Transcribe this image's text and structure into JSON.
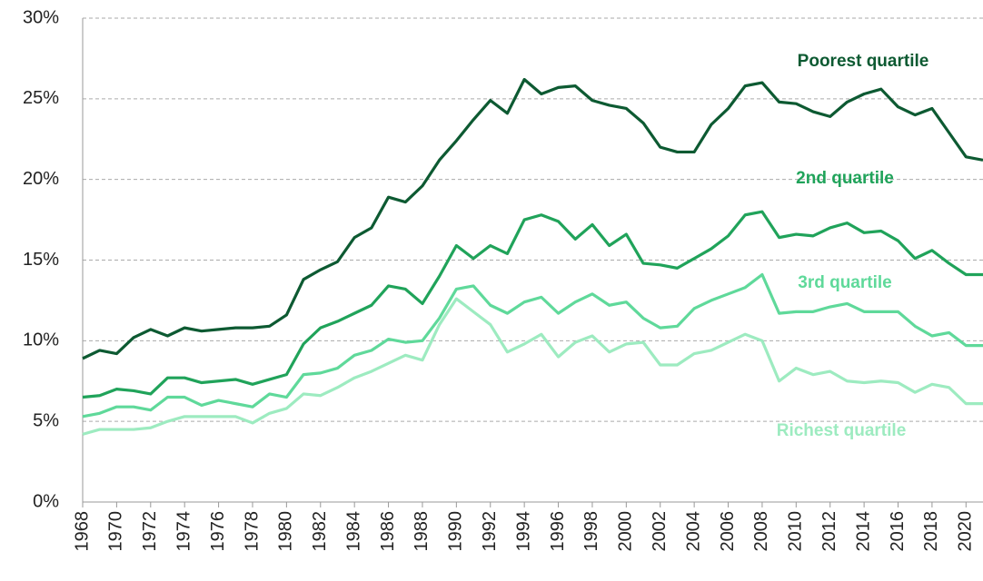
{
  "chart_data": {
    "type": "line",
    "x": [
      1968,
      1969,
      1970,
      1971,
      1972,
      1973,
      1974,
      1975,
      1976,
      1977,
      1978,
      1979,
      1980,
      1981,
      1982,
      1983,
      1984,
      1985,
      1986,
      1987,
      1988,
      1989,
      1990,
      1991,
      1992,
      1993,
      1994,
      1995,
      1996,
      1997,
      1998,
      1999,
      2000,
      2001,
      2002,
      2003,
      2004,
      2005,
      2006,
      2007,
      2008,
      2009,
      2010,
      2011,
      2012,
      2013,
      2014,
      2015,
      2016,
      2017,
      2018,
      2019,
      2020,
      2021
    ],
    "series": [
      {
        "name": "Poorest quartile",
        "color": "#0d5a32",
        "values": [
          8.9,
          9.4,
          9.2,
          10.2,
          10.7,
          10.3,
          10.8,
          10.6,
          10.7,
          10.8,
          10.8,
          10.9,
          11.6,
          13.8,
          14.4,
          14.9,
          16.4,
          17.0,
          18.9,
          18.6,
          19.6,
          21.2,
          22.4,
          23.7,
          24.9,
          24.1,
          26.2,
          25.3,
          25.7,
          25.8,
          24.9,
          24.6,
          24.4,
          23.5,
          22.0,
          21.7,
          21.7,
          23.4,
          24.4,
          25.8,
          26.0,
          24.8,
          24.7,
          24.2,
          23.9,
          24.8,
          25.3,
          25.6,
          24.5,
          24.0,
          24.4,
          22.9,
          21.4,
          21.2
        ]
      },
      {
        "name": "2nd quartile",
        "color": "#20a35a",
        "values": [
          6.5,
          6.6,
          7.0,
          6.9,
          6.7,
          7.7,
          7.7,
          7.4,
          7.5,
          7.6,
          7.3,
          7.6,
          7.9,
          9.8,
          10.8,
          11.2,
          11.7,
          12.2,
          13.4,
          13.2,
          12.3,
          14.0,
          15.9,
          15.1,
          15.9,
          15.4,
          17.5,
          17.8,
          17.4,
          16.3,
          17.2,
          15.9,
          16.6,
          14.8,
          14.7,
          14.5,
          15.1,
          15.7,
          16.5,
          17.8,
          18.0,
          16.4,
          16.6,
          16.5,
          17.0,
          17.3,
          16.7,
          16.8,
          16.2,
          15.1,
          15.6,
          14.8,
          14.1,
          14.1
        ]
      },
      {
        "name": "3rd quartile",
        "color": "#5fd99a",
        "values": [
          5.3,
          5.5,
          5.9,
          5.9,
          5.7,
          6.5,
          6.5,
          6.0,
          6.3,
          6.1,
          5.9,
          6.7,
          6.5,
          7.9,
          8.0,
          8.3,
          9.1,
          9.4,
          10.1,
          9.9,
          10.0,
          11.4,
          13.2,
          13.4,
          12.2,
          11.7,
          12.4,
          12.7,
          11.7,
          12.4,
          12.9,
          12.2,
          12.4,
          11.4,
          10.8,
          10.9,
          12.0,
          12.5,
          12.9,
          13.3,
          14.1,
          11.7,
          11.8,
          11.8,
          12.1,
          12.3,
          11.8,
          11.8,
          11.8,
          10.9,
          10.3,
          10.5,
          9.7,
          9.7
        ]
      },
      {
        "name": "Richest quartile",
        "color": "#9debc0",
        "values": [
          4.2,
          4.5,
          4.5,
          4.5,
          4.6,
          5.0,
          5.3,
          5.3,
          5.3,
          5.3,
          4.9,
          5.5,
          5.8,
          6.7,
          6.6,
          7.1,
          7.7,
          8.1,
          8.6,
          9.1,
          8.8,
          11.0,
          12.6,
          11.8,
          11.0,
          9.3,
          9.8,
          10.4,
          9.0,
          9.9,
          10.3,
          9.3,
          9.8,
          9.9,
          8.5,
          8.5,
          9.2,
          9.4,
          9.9,
          10.4,
          10.0,
          7.5,
          8.3,
          7.9,
          8.1,
          7.5,
          7.4,
          7.5,
          7.4,
          6.8,
          7.3,
          7.1,
          6.1,
          6.1
        ]
      }
    ],
    "xlim": [
      1968,
      2021
    ],
    "xticks": [
      1968,
      1970,
      1972,
      1974,
      1976,
      1978,
      1980,
      1982,
      1984,
      1986,
      1988,
      1990,
      1992,
      1994,
      1996,
      1998,
      2000,
      2002,
      2004,
      2006,
      2008,
      2010,
      2012,
      2014,
      2016,
      2018,
      2020
    ],
    "ylim": [
      0,
      30
    ],
    "yticks": [
      {
        "value": 0,
        "label": "0%"
      },
      {
        "value": 5,
        "label": "5%"
      },
      {
        "value": 10,
        "label": "10%"
      },
      {
        "value": 15,
        "label": "15%"
      },
      {
        "value": 20,
        "label": "20%"
      },
      {
        "value": 25,
        "label": "25%"
      },
      {
        "value": 30,
        "label": "30%"
      }
    ],
    "grid": true
  }
}
